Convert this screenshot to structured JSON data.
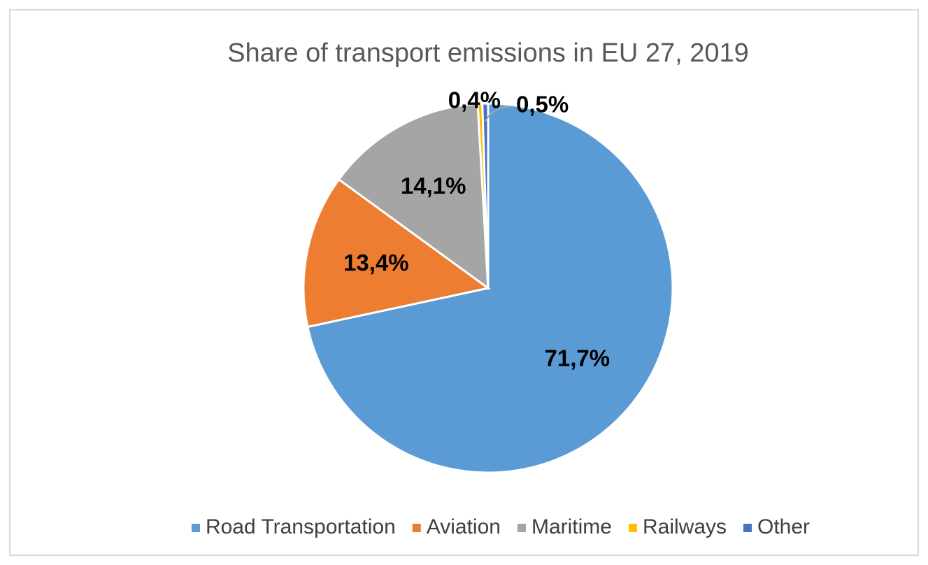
{
  "chart_data": {
    "type": "pie",
    "title": "Share of transport emissions in EU 27, 2019",
    "categories": [
      "Road Transportation",
      "Aviation",
      "Maritime",
      "Railways",
      "Other"
    ],
    "values": [
      71.7,
      13.4,
      14.1,
      0.4,
      0.5
    ],
    "value_labels": [
      "71,7%",
      "13,4%",
      "14,1%",
      "0,4%",
      "0,5%"
    ],
    "colors": [
      "#5b9bd5",
      "#ed7d31",
      "#a5a5a5",
      "#ffc000",
      "#4472c4"
    ],
    "legend": "bottom"
  }
}
